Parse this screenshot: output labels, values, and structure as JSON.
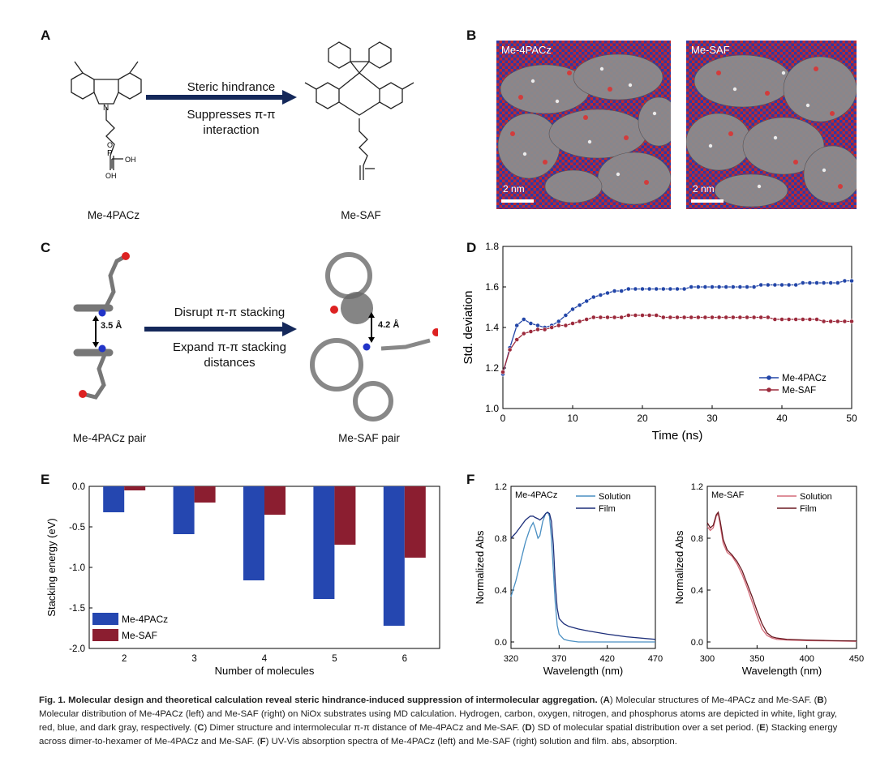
{
  "panels": {
    "A": "A",
    "B": "B",
    "C": "C",
    "D": "D",
    "E": "E",
    "F": "F"
  },
  "panel_a": {
    "arrow_top": "Steric hindrance",
    "arrow_bottom_1": "Suppresses π-π",
    "arrow_bottom_2": "interaction",
    "left_label": "Me-4PACz",
    "right_label": "Me-SAF",
    "atom_labels": {
      "O": "O",
      "P": "P",
      "OH": "OH",
      "N": "N"
    }
  },
  "panel_b": {
    "left_title": "Me-4PACz",
    "right_title": "Me-SAF",
    "scale_left": "2 nm",
    "scale_right": "2 nm"
  },
  "panel_c": {
    "arrow_top": "Disrupt π-π stacking",
    "arrow_bottom_1": "Expand π-π stacking",
    "arrow_bottom_2": "distances",
    "left_label": "Me-4PACz pair",
    "right_label": "Me-SAF pair",
    "left_distance": "3.5 Å",
    "right_distance": "4.2 Å"
  },
  "chart_data": [
    {
      "panel": "D",
      "type": "line",
      "xlabel": "Time (ns)",
      "ylabel": "Std. deviation",
      "xlim": [
        0,
        50
      ],
      "ylim": [
        1.0,
        1.8
      ],
      "xticks": [
        "0",
        "10",
        "20",
        "30",
        "40",
        "50"
      ],
      "yticks": [
        "1.0",
        "1.2",
        "1.4",
        "1.6",
        "1.8"
      ],
      "legend_position": "bottom-right",
      "series": [
        {
          "name": "Me-4PACz",
          "color": "#2346a8",
          "x": [
            0,
            1,
            2,
            3,
            4,
            5,
            6,
            7,
            8,
            9,
            10,
            11,
            12,
            13,
            14,
            15,
            16,
            17,
            18,
            19,
            20,
            21,
            22,
            23,
            24,
            25,
            26,
            27,
            28,
            29,
            30,
            31,
            32,
            33,
            34,
            35,
            36,
            37,
            38,
            39,
            40,
            41,
            42,
            43,
            44,
            45,
            46,
            47,
            48,
            49,
            50
          ],
          "y": [
            1.17,
            1.3,
            1.41,
            1.44,
            1.42,
            1.41,
            1.4,
            1.41,
            1.43,
            1.46,
            1.49,
            1.51,
            1.53,
            1.55,
            1.56,
            1.57,
            1.58,
            1.58,
            1.59,
            1.59,
            1.59,
            1.59,
            1.59,
            1.59,
            1.59,
            1.59,
            1.59,
            1.6,
            1.6,
            1.6,
            1.6,
            1.6,
            1.6,
            1.6,
            1.6,
            1.6,
            1.6,
            1.61,
            1.61,
            1.61,
            1.61,
            1.61,
            1.61,
            1.62,
            1.62,
            1.62,
            1.62,
            1.62,
            1.62,
            1.63,
            1.63
          ]
        },
        {
          "name": "Me-SAF",
          "color": "#9c2a3c",
          "x": [
            0,
            1,
            2,
            3,
            4,
            5,
            6,
            7,
            8,
            9,
            10,
            11,
            12,
            13,
            14,
            15,
            16,
            17,
            18,
            19,
            20,
            21,
            22,
            23,
            24,
            25,
            26,
            27,
            28,
            29,
            30,
            31,
            32,
            33,
            34,
            35,
            36,
            37,
            38,
            39,
            40,
            41,
            42,
            43,
            44,
            45,
            46,
            47,
            48,
            49,
            50
          ],
          "y": [
            1.18,
            1.29,
            1.34,
            1.37,
            1.38,
            1.39,
            1.39,
            1.4,
            1.41,
            1.41,
            1.42,
            1.43,
            1.44,
            1.45,
            1.45,
            1.45,
            1.45,
            1.45,
            1.46,
            1.46,
            1.46,
            1.46,
            1.46,
            1.45,
            1.45,
            1.45,
            1.45,
            1.45,
            1.45,
            1.45,
            1.45,
            1.45,
            1.45,
            1.45,
            1.45,
            1.45,
            1.45,
            1.45,
            1.45,
            1.44,
            1.44,
            1.44,
            1.44,
            1.44,
            1.44,
            1.44,
            1.43,
            1.43,
            1.43,
            1.43,
            1.43
          ]
        }
      ]
    },
    {
      "panel": "E",
      "type": "bar",
      "xlabel": "Number of molecules",
      "ylabel": "Stacking energy (eV)",
      "categories": [
        "2",
        "3",
        "4",
        "5",
        "6"
      ],
      "ylim": [
        -2.0,
        0.0
      ],
      "yticks": [
        "0.0",
        "-0.5",
        "-1.0",
        "-1.5",
        "-2.0"
      ],
      "legend_position": "bottom-left",
      "series": [
        {
          "name": "Me-4PACz",
          "color": "#2547b0",
          "values": [
            -0.32,
            -0.59,
            -1.16,
            -1.39,
            -1.72
          ]
        },
        {
          "name": "Me-SAF",
          "color": "#8b1e30",
          "values": [
            -0.05,
            -0.2,
            -0.35,
            -0.72,
            -0.88
          ]
        }
      ]
    },
    {
      "panel": "F-left",
      "type": "line",
      "title": "Me-4PACz",
      "xlabel": "Wavelength (nm)",
      "ylabel": "Normalized Abs",
      "xlim": [
        320,
        470
      ],
      "ylim": [
        -0.05,
        1.2
      ],
      "xticks": [
        "320",
        "370",
        "420",
        "470"
      ],
      "yticks": [
        "0.0",
        "0.4",
        "0.8",
        "1.2"
      ],
      "legend_position": "top-right",
      "series": [
        {
          "name": "Solution",
          "color": "#4a8fc2",
          "x": [
            320,
            325,
            330,
            335,
            340,
            343,
            345,
            348,
            350,
            353,
            356,
            358,
            360,
            362,
            364,
            366,
            368,
            370,
            375,
            380,
            390,
            400,
            420,
            440,
            470
          ],
          "y": [
            0.35,
            0.47,
            0.62,
            0.77,
            0.88,
            0.92,
            0.88,
            0.8,
            0.82,
            0.93,
            0.99,
            1.0,
            0.97,
            0.8,
            0.55,
            0.3,
            0.13,
            0.06,
            0.02,
            0.01,
            0.0,
            0.0,
            0.0,
            0.0,
            0.0
          ]
        },
        {
          "name": "Film",
          "color": "#1d2f7a",
          "x": [
            320,
            325,
            330,
            335,
            340,
            343,
            345,
            348,
            350,
            353,
            356,
            358,
            360,
            362,
            364,
            366,
            368,
            370,
            375,
            380,
            390,
            400,
            420,
            440,
            470
          ],
          "y": [
            0.8,
            0.84,
            0.89,
            0.94,
            0.97,
            0.97,
            0.96,
            0.95,
            0.94,
            0.96,
            0.99,
            1.0,
            0.99,
            0.93,
            0.75,
            0.45,
            0.26,
            0.18,
            0.14,
            0.12,
            0.1,
            0.085,
            0.06,
            0.04,
            0.02
          ]
        }
      ]
    },
    {
      "panel": "F-right",
      "type": "line",
      "title": "Me-SAF",
      "xlabel": "Wavelength (nm)",
      "ylabel": "Normalized Abs",
      "xlim": [
        300,
        450
      ],
      "ylim": [
        -0.05,
        1.2
      ],
      "xticks": [
        "300",
        "350",
        "400",
        "450"
      ],
      "yticks": [
        "0.0",
        "0.4",
        "0.8",
        "1.2"
      ],
      "legend_position": "top-right",
      "series": [
        {
          "name": "Solution",
          "color": "#d36a78",
          "x": [
            300,
            303,
            306,
            309,
            311,
            313,
            316,
            320,
            325,
            330,
            335,
            340,
            345,
            350,
            355,
            360,
            365,
            370,
            380,
            400,
            425,
            450
          ],
          "y": [
            0.89,
            0.86,
            0.88,
            0.97,
            0.99,
            0.9,
            0.76,
            0.69,
            0.66,
            0.6,
            0.52,
            0.42,
            0.31,
            0.2,
            0.1,
            0.05,
            0.03,
            0.02,
            0.015,
            0.01,
            0.008,
            0.005
          ]
        },
        {
          "name": "Film",
          "color": "#6b1a22",
          "x": [
            300,
            303,
            306,
            309,
            311,
            313,
            316,
            320,
            325,
            330,
            335,
            340,
            345,
            350,
            355,
            360,
            365,
            370,
            380,
            400,
            425,
            450
          ],
          "y": [
            0.92,
            0.88,
            0.9,
            0.98,
            1.0,
            0.93,
            0.79,
            0.71,
            0.67,
            0.62,
            0.55,
            0.45,
            0.35,
            0.24,
            0.14,
            0.07,
            0.04,
            0.03,
            0.02,
            0.015,
            0.01,
            0.008
          ]
        }
      ]
    }
  ],
  "caption": {
    "bold": "Fig. 1. Molecular design and theoretical calculation reveal steric hindrance-induced suppression of intermolecular aggregation.",
    "A": "A",
    "text_a": " Molecular structures of Me-4PACz and Me-SAF. ",
    "B": "B",
    "text_b": " Molecular distribution of Me-4PACz (left) and Me-SAF (right) on NiOx substrates using MD calculation. Hydrogen, carbon, oxygen, nitrogen, and phosphorus atoms are depicted in white, light gray, red, blue, and dark gray, respectively. ",
    "C": "C",
    "text_c": " Dimer structure and intermolecular π-π distance of Me-4PACz and Me-SAF. ",
    "D": "D",
    "text_d": " SD of molecular spatial distribution over a set period. ",
    "E": "E",
    "text_e": " Stacking energy across dimer-to-hexamer of Me-4PACz and Me-SAF. ",
    "F": "F",
    "text_f": " UV-Vis absorption spectra of Me-4PACz (left) and Me-SAF (right) solution and film. abs, absorption."
  }
}
